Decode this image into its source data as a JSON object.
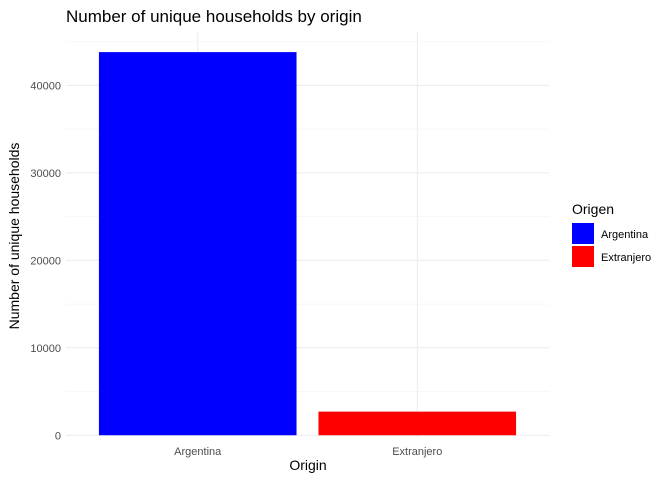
{
  "chart_data": {
    "type": "bar",
    "title": "Number of unique households by origin",
    "xlabel": "Origin",
    "ylabel": "Number of unique households",
    "categories": [
      "Argentina",
      "Extranjero"
    ],
    "values": [
      43800,
      2700
    ],
    "colors": [
      "#0000ff",
      "#ff0000"
    ],
    "ylim": [
      -200,
      46100
    ],
    "yticks": [
      0,
      10000,
      20000,
      30000,
      40000
    ],
    "ytick_labels": [
      "0",
      "10000",
      "20000",
      "30000",
      "40000"
    ],
    "grid": true,
    "legend": {
      "title": "Origen",
      "position": "right",
      "entries": [
        {
          "label": "Argentina",
          "color": "#0000ff"
        },
        {
          "label": "Extranjero",
          "color": "#ff0000"
        }
      ]
    }
  }
}
